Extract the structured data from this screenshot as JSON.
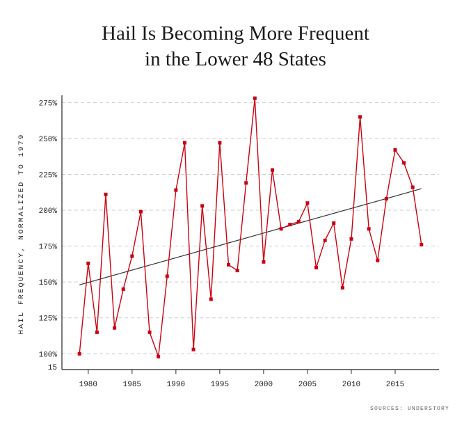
{
  "title_line1": "Hail Is Becoming More Frequent",
  "title_line2": "in the Lower 48 States",
  "source": "SOURCES: UNDERSTORY",
  "colors": {
    "series": "#cc0011",
    "trend": "#333333",
    "grid": "#cccccc",
    "axis": "#222222"
  },
  "chart_data": {
    "type": "line",
    "title": "Hail Is Becoming More Frequent in the Lower 48 States",
    "xlabel": "",
    "ylabel": "HAIL FREQUENCY, NORMALIZED TO 1979",
    "xticks": [
      1980,
      1985,
      1990,
      1995,
      2000,
      2005,
      2010,
      2015
    ],
    "yticks": [
      "15",
      "100%",
      "125%",
      "150%",
      "175%",
      "200%",
      "225%",
      "250%",
      "275%"
    ],
    "ylim": [
      89,
      280
    ],
    "xlim": [
      1977,
      2020
    ],
    "grid": "horizontal dashed",
    "series": [
      {
        "x": [
          1979,
          1980,
          1981,
          1982,
          1983,
          1984,
          1985,
          1986,
          1987,
          1988,
          1989,
          1990,
          1991,
          1992,
          1993,
          1994,
          1995,
          1996,
          1997,
          1998,
          1999,
          2000,
          2001,
          2002,
          2003,
          2004,
          2005,
          2006,
          2007,
          2008,
          2009,
          2010,
          2011,
          2012,
          2013,
          2014,
          2015,
          2016,
          2017,
          2018
        ],
        "values": [
          100,
          163,
          115,
          211,
          118,
          145,
          168,
          199,
          115,
          98,
          154,
          214,
          247,
          103,
          203,
          138,
          247,
          162,
          158,
          219,
          278,
          164,
          228,
          187,
          190,
          192,
          205,
          160,
          179,
          191,
          146,
          180,
          265,
          187,
          165,
          208,
          242,
          233,
          216,
          176
        ]
      }
    ],
    "trendline": {
      "x": [
        1979,
        2018
      ],
      "values": [
        148,
        215
      ]
    }
  }
}
